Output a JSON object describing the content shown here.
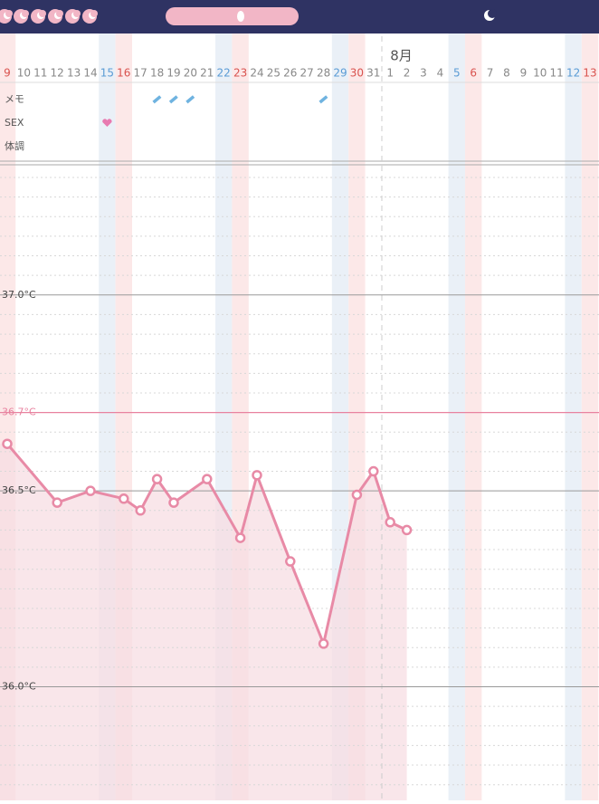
{
  "chart_data": {
    "type": "line",
    "month_label": "8月",
    "categories": [
      "9",
      "10",
      "11",
      "12",
      "13",
      "14",
      "15",
      "16",
      "17",
      "18",
      "19",
      "20",
      "21",
      "22",
      "23",
      "24",
      "25",
      "26",
      "27",
      "28",
      "29",
      "30",
      "31",
      "1",
      "2",
      "3",
      "4",
      "5",
      "6",
      "7",
      "8",
      "9",
      "10",
      "11",
      "12",
      "13"
    ],
    "values": [
      36.62,
      null,
      null,
      36.47,
      null,
      36.5,
      null,
      36.48,
      36.45,
      36.53,
      36.47,
      null,
      36.53,
      null,
      36.38,
      36.54,
      null,
      36.32,
      null,
      36.11,
      null,
      36.49,
      36.55,
      36.42,
      36.4,
      null,
      null,
      null,
      null,
      null,
      null,
      null,
      null,
      null,
      null,
      null
    ],
    "color": "#e88aa6",
    "fill_color": "#f7dde3",
    "span_gaps": true,
    "ylim": [
      35.71,
      37.33
    ],
    "yticks": [
      {
        "value": 36.0,
        "label": "36.0°C"
      },
      {
        "value": 36.5,
        "label": "36.5°C"
      },
      {
        "value": 37.0,
        "label": "37.0°C"
      }
    ],
    "minor_yticks": [
      35.75,
      35.8,
      35.85,
      35.9,
      35.95,
      36.05,
      36.1,
      36.15,
      36.2,
      36.25,
      36.3,
      36.35,
      36.4,
      36.45,
      36.55,
      36.6,
      36.65,
      36.75,
      36.8,
      36.85,
      36.9,
      36.95,
      37.05,
      37.1,
      37.15,
      37.2,
      37.25,
      37.3
    ],
    "reference_line": {
      "value": 36.7,
      "label": "36.7°C",
      "color": "#e8829f"
    },
    "rows": [
      {
        "label": "メモ",
        "days": [
          "18",
          "19",
          "20",
          "28"
        ]
      },
      {
        "label": "SEX",
        "days": [
          "15"
        ]
      },
      {
        "label": "体調",
        "days": []
      }
    ]
  }
}
